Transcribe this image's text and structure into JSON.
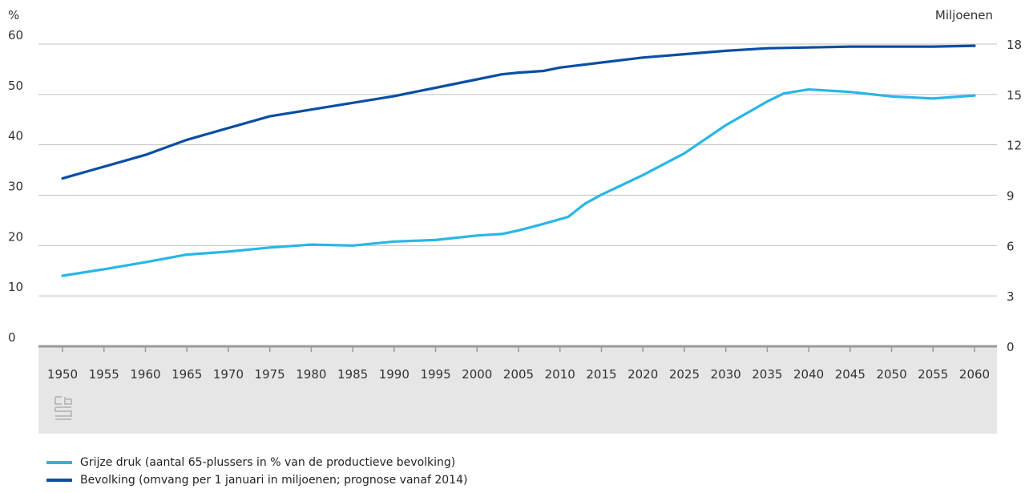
{
  "chart_data": {
    "type": "line",
    "x_ticks": [
      "1950",
      "1955",
      "1960",
      "1965",
      "1970",
      "1975",
      "1980",
      "1985",
      "1990",
      "1995",
      "2000",
      "2005",
      "2010",
      "2015",
      "2020",
      "2025",
      "2030",
      "2035",
      "2040",
      "2045",
      "2050",
      "2055",
      "2060"
    ],
    "left_axis": {
      "unit": "%",
      "ticks": [
        "0",
        "10",
        "20",
        "30",
        "40",
        "50",
        "60"
      ],
      "ylim": [
        0,
        60
      ]
    },
    "right_axis": {
      "unit": "Miljoenen",
      "ticks": [
        "0",
        "3",
        "6",
        "9",
        "12",
        "15",
        "18"
      ],
      "ylim": [
        0,
        18
      ]
    },
    "grid": true,
    "series": [
      {
        "name": "Grijze druk (aantal 65-plussers in % van de productieve bevolking)",
        "axis": "left",
        "color": "#29b6e6",
        "x": [
          1950,
          1955,
          1960,
          1965,
          1970,
          1975,
          1980,
          1985,
          1990,
          1995,
          2000,
          2003,
          2005,
          2008,
          2011,
          2013,
          2015,
          2020,
          2025,
          2030,
          2035,
          2037,
          2040,
          2045,
          2050,
          2055,
          2060
        ],
        "y": [
          14.0,
          15.3,
          16.7,
          18.2,
          18.8,
          19.6,
          20.2,
          20.0,
          20.8,
          21.1,
          22.0,
          22.3,
          23.0,
          24.3,
          25.7,
          28.3,
          30.1,
          34.0,
          38.3,
          43.9,
          48.6,
          50.2,
          51.0,
          50.5,
          49.6,
          49.2,
          49.8
        ]
      },
      {
        "name": "Bevolking (omvang per 1 januari in miljoenen; prognose vanaf 2014)",
        "axis": "right",
        "color": "#0b4ea2",
        "x": [
          1950,
          1955,
          1960,
          1965,
          1970,
          1975,
          1980,
          1985,
          1990,
          1995,
          2000,
          2003,
          2005,
          2008,
          2010,
          2015,
          2020,
          2025,
          2030,
          2035,
          2040,
          2045,
          2050,
          2055,
          2060
        ],
        "y": [
          10.0,
          10.7,
          11.4,
          12.3,
          13.0,
          13.7,
          14.1,
          14.5,
          14.9,
          15.4,
          15.9,
          16.2,
          16.3,
          16.4,
          16.6,
          16.9,
          17.2,
          17.4,
          17.6,
          17.75,
          17.8,
          17.85,
          17.85,
          17.85,
          17.9
        ]
      }
    ]
  },
  "legend": {
    "items": [
      {
        "label": "Grijze druk (aantal 65-plussers in % van de productieve bevolking)",
        "color": "#29b6e6"
      },
      {
        "label": "Bevolking (omvang per 1 januari in miljoenen; prognose vanaf 2014)",
        "color": "#0b4ea2"
      }
    ]
  },
  "colors": {
    "grid": "#bfbfbf",
    "axis_band": "#e6e6e6",
    "axis_line": "#9a9a9a",
    "text": "#333333",
    "logo": "#bdbdbd"
  },
  "logo": {
    "icon": "cbs-logo-icon"
  }
}
